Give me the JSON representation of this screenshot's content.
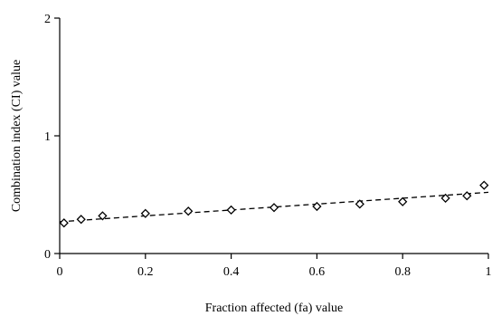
{
  "chart_data": {
    "type": "scatter",
    "title": "",
    "xlabel": "Fraction affected (fa) value",
    "ylabel": "Combination index (CI) value",
    "xlim": [
      0,
      1
    ],
    "ylim": [
      0,
      2
    ],
    "x_ticks": [
      0,
      0.2,
      0.4,
      0.6,
      0.8,
      1
    ],
    "x_tick_labels": [
      "0",
      "0.2",
      "0.4",
      "0.6",
      "0.8",
      "1"
    ],
    "y_ticks": [
      0,
      1,
      2
    ],
    "y_tick_labels": [
      "0",
      "1",
      "2"
    ],
    "grid": false,
    "legend": "none",
    "series": [
      {
        "marker": "open-diamond",
        "color": "#000000",
        "x": [
          0.01,
          0.05,
          0.1,
          0.2,
          0.3,
          0.4,
          0.5,
          0.6,
          0.7,
          0.8,
          0.9,
          0.95,
          0.99
        ],
        "y": [
          0.26,
          0.29,
          0.32,
          0.34,
          0.36,
          0.37,
          0.39,
          0.4,
          0.42,
          0.44,
          0.47,
          0.49,
          0.58
        ]
      }
    ],
    "trendline": {
      "style": "dashed",
      "color": "#000000",
      "x": [
        0,
        1
      ],
      "y": [
        0.27,
        0.52
      ]
    }
  }
}
